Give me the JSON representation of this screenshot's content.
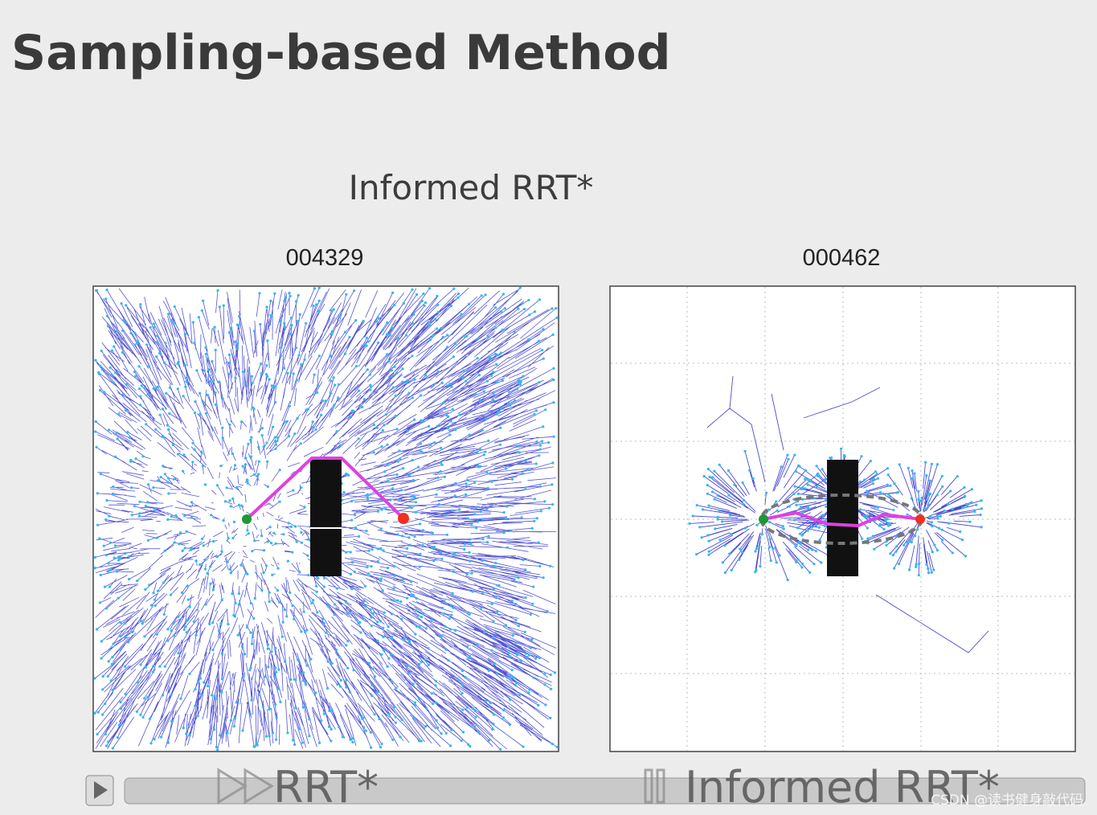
{
  "slide": {
    "title": "Sampling-based Method",
    "subtitle": "Informed RRT*",
    "panels": [
      {
        "counter": "004329",
        "caption": "RRT*"
      },
      {
        "counter": "000462",
        "caption": "Informed RRT*"
      }
    ],
    "watermark": "CSDN @读书健身敲代码"
  }
}
